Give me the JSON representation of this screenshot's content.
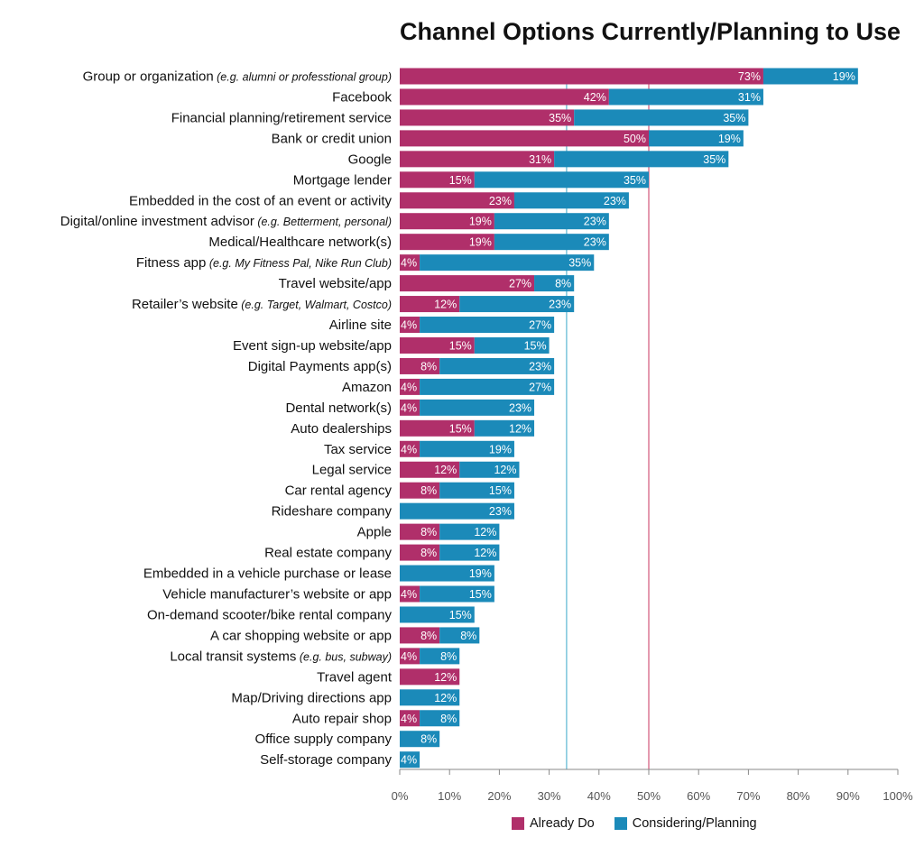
{
  "chart_data": {
    "type": "bar",
    "orientation": "horizontal",
    "stacked": true,
    "title": "Channel Options Currently/Planning to Use",
    "categories": [
      {
        "label": "Group or organization",
        "note": "(e.g. alumni or professtional group)"
      },
      {
        "label": "Facebook",
        "note": ""
      },
      {
        "label": "Financial planning/retirement service",
        "note": ""
      },
      {
        "label": "Bank or credit union",
        "note": ""
      },
      {
        "label": "Google",
        "note": ""
      },
      {
        "label": "Mortgage lender",
        "note": ""
      },
      {
        "label": "Embedded in the cost of an event or activity",
        "note": ""
      },
      {
        "label": "Digital/online investment advisor",
        "note": "(e.g. Betterment, personal)"
      },
      {
        "label": "Medical/Healthcare network(s)",
        "note": ""
      },
      {
        "label": "Fitness app",
        "note": "(e.g. My Fitness Pal, Nike Run Club)"
      },
      {
        "label": "Travel website/app",
        "note": ""
      },
      {
        "label": "Retailer’s website",
        "note": "(e.g. Target, Walmart, Costco)"
      },
      {
        "label": "Airline site",
        "note": ""
      },
      {
        "label": "Event sign-up website/app",
        "note": ""
      },
      {
        "label": "Digital Payments app(s)",
        "note": ""
      },
      {
        "label": "Amazon",
        "note": ""
      },
      {
        "label": "Dental network(s)",
        "note": ""
      },
      {
        "label": "Auto dealerships",
        "note": ""
      },
      {
        "label": "Tax service",
        "note": ""
      },
      {
        "label": "Legal service",
        "note": ""
      },
      {
        "label": "Car rental agency",
        "note": ""
      },
      {
        "label": "Rideshare company",
        "note": ""
      },
      {
        "label": "Apple",
        "note": ""
      },
      {
        "label": "Real estate company",
        "note": ""
      },
      {
        "label": "Embedded in a vehicle purchase or lease",
        "note": ""
      },
      {
        "label": "Vehicle manufacturer’s website or app",
        "note": ""
      },
      {
        "label": "On-demand scooter/bike rental company",
        "note": ""
      },
      {
        "label": "A car shopping website or app",
        "note": ""
      },
      {
        "label": "Local transit systems",
        "note": "(e.g. bus, subway)"
      },
      {
        "label": "Travel agent",
        "note": ""
      },
      {
        "label": "Map/Driving directions app",
        "note": ""
      },
      {
        "label": "Auto repair shop",
        "note": ""
      },
      {
        "label": "Office supply company",
        "note": ""
      },
      {
        "label": "Self-storage company",
        "note": ""
      }
    ],
    "series": [
      {
        "name": "Already Do",
        "color": "#b02f6a",
        "values": [
          73,
          42,
          35,
          50,
          31,
          15,
          23,
          19,
          19,
          4,
          27,
          12,
          4,
          15,
          8,
          4,
          4,
          15,
          4,
          12,
          8,
          0,
          8,
          8,
          0,
          4,
          0,
          8,
          4,
          12,
          0,
          4,
          0,
          0
        ]
      },
      {
        "name": "Considering/Planning",
        "color": "#1b8ab9",
        "values": [
          19,
          31,
          35,
          19,
          35,
          35,
          23,
          23,
          23,
          35,
          8,
          23,
          27,
          15,
          23,
          27,
          23,
          12,
          19,
          12,
          15,
          23,
          12,
          12,
          19,
          15,
          15,
          8,
          8,
          0,
          12,
          8,
          8,
          4
        ]
      }
    ],
    "xlim": [
      0,
      100
    ],
    "xticks": [
      "0%",
      "10%",
      "20%",
      "30%",
      "40%",
      "50%",
      "60%",
      "70%",
      "80%",
      "90%",
      "100%"
    ],
    "reference_lines": [
      {
        "value": 33.5,
        "color": "#3aa6c9"
      },
      {
        "value": 50,
        "color": "#c9345f"
      }
    ],
    "grid": false,
    "legend_position": "bottom"
  }
}
